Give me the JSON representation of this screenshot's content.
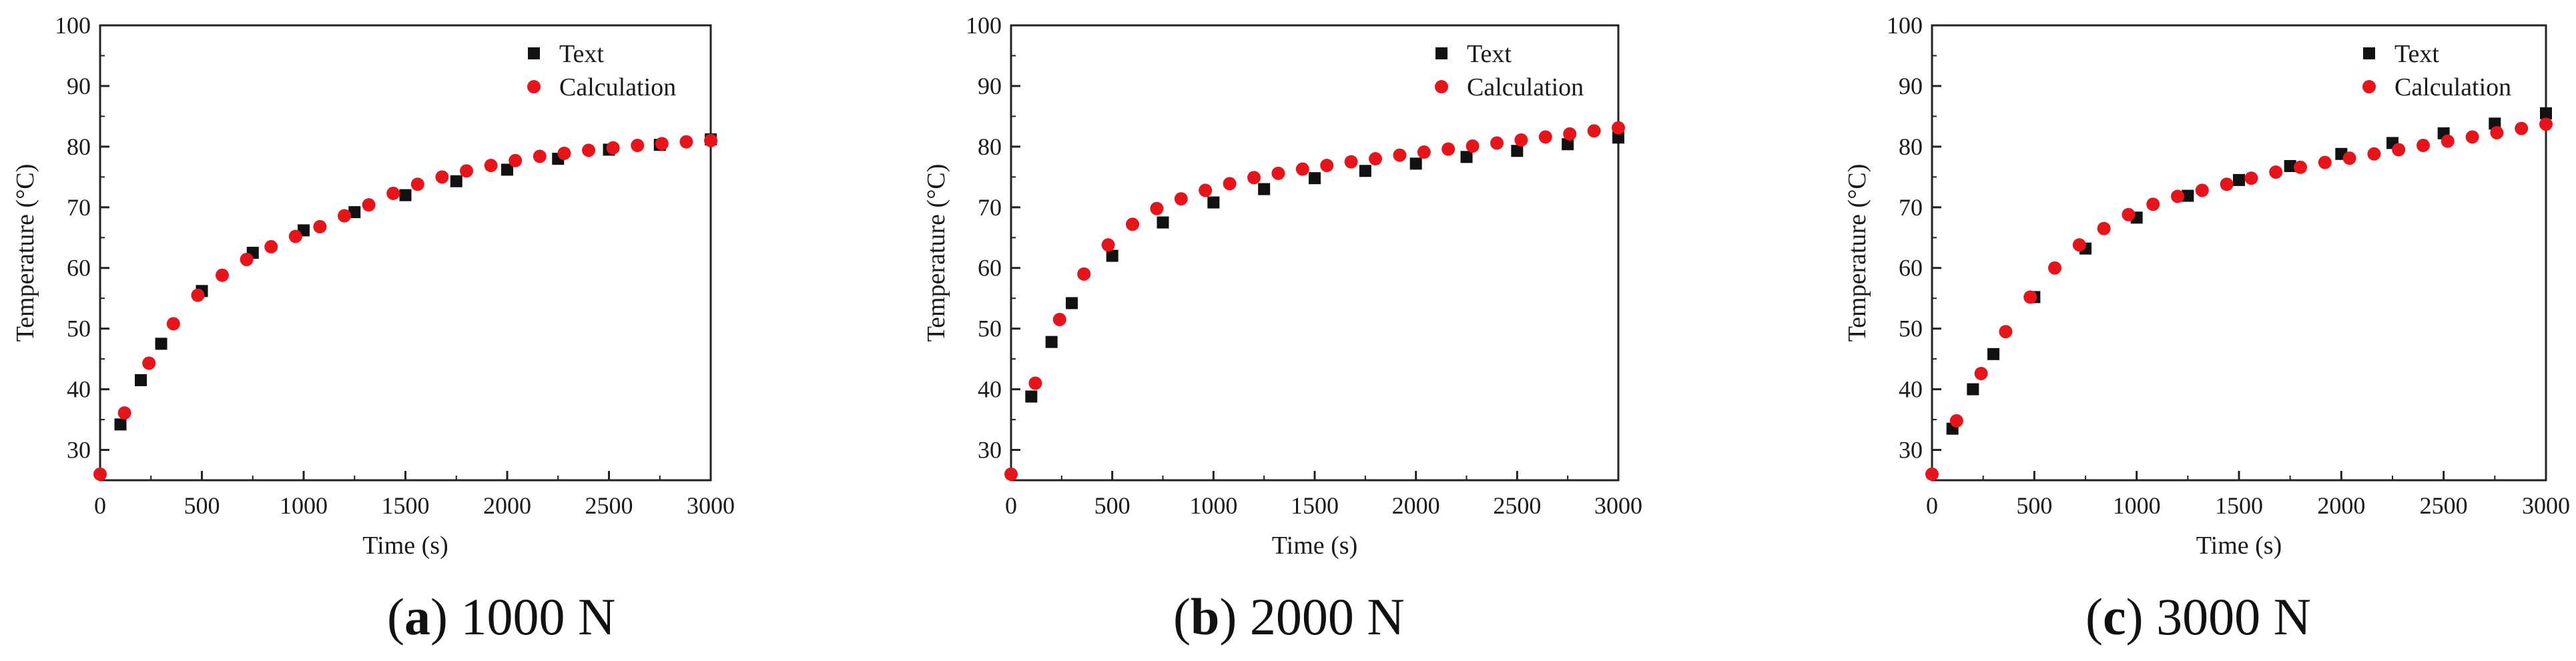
{
  "chart_data": [
    {
      "type": "scatter",
      "panel_label": "a",
      "caption": "1000 N",
      "xlabel": "Time (s)",
      "ylabel": "Temperature (°C)",
      "xlim": [
        0,
        3000
      ],
      "ylim": [
        25,
        100
      ],
      "xticks": [
        0,
        500,
        1000,
        1500,
        2000,
        2500,
        3000
      ],
      "yticks": [
        30,
        40,
        50,
        60,
        70,
        80,
        90,
        100
      ],
      "legend_position": "top-right",
      "series": [
        {
          "name": "Text",
          "marker": "square",
          "color": "#111111",
          "x": [
            100,
            200,
            300,
            500,
            750,
            1000,
            1250,
            1500,
            1750,
            2000,
            2250,
            2500,
            2750,
            3000
          ],
          "y": [
            34.2,
            41.5,
            47.5,
            56.2,
            62.5,
            66.2,
            69.2,
            72.0,
            74.3,
            76.2,
            78.0,
            79.5,
            80.3,
            81.2
          ]
        },
        {
          "name": "Calculation",
          "marker": "circle",
          "color": "#e8141b",
          "x": [
            0,
            120,
            240,
            360,
            480,
            600,
            720,
            840,
            960,
            1080,
            1200,
            1320,
            1440,
            1560,
            1680,
            1800,
            1920,
            2040,
            2160,
            2280,
            2400,
            2520,
            2640,
            2760,
            2880,
            3000
          ],
          "y": [
            26.0,
            36.1,
            44.3,
            50.8,
            55.5,
            58.8,
            61.4,
            63.5,
            65.2,
            66.8,
            68.6,
            70.4,
            72.3,
            73.8,
            75.0,
            76.0,
            76.9,
            77.7,
            78.4,
            78.9,
            79.4,
            79.8,
            80.2,
            80.5,
            80.8,
            81.0
          ]
        }
      ]
    },
    {
      "type": "scatter",
      "panel_label": "b",
      "caption": "2000 N",
      "xlabel": "Time (s)",
      "ylabel": "Temperature (°C)",
      "xlim": [
        0,
        3000
      ],
      "ylim": [
        25,
        100
      ],
      "xticks": [
        0,
        500,
        1000,
        1500,
        2000,
        2500,
        3000
      ],
      "yticks": [
        30,
        40,
        50,
        60,
        70,
        80,
        90,
        100
      ],
      "legend_position": "top-right",
      "series": [
        {
          "name": "Text",
          "marker": "square",
          "color": "#111111",
          "x": [
            100,
            200,
            300,
            500,
            750,
            1000,
            1250,
            1500,
            1750,
            2000,
            2250,
            2500,
            2750,
            3000
          ],
          "y": [
            38.8,
            47.8,
            54.2,
            62.0,
            67.5,
            70.8,
            73.0,
            74.8,
            76.0,
            77.2,
            78.3,
            79.3,
            80.4,
            81.5
          ]
        },
        {
          "name": "Calculation",
          "marker": "circle",
          "color": "#e8141b",
          "x": [
            0,
            120,
            240,
            360,
            480,
            600,
            720,
            840,
            960,
            1080,
            1200,
            1320,
            1440,
            1560,
            1680,
            1800,
            1920,
            2040,
            2160,
            2280,
            2400,
            2520,
            2640,
            2760,
            2880,
            3000
          ],
          "y": [
            26.0,
            41.0,
            51.5,
            59.0,
            63.8,
            67.2,
            69.8,
            71.4,
            72.8,
            73.9,
            74.9,
            75.6,
            76.3,
            76.9,
            77.5,
            78.0,
            78.6,
            79.1,
            79.6,
            80.1,
            80.6,
            81.1,
            81.6,
            82.1,
            82.6,
            83.1
          ]
        }
      ]
    },
    {
      "type": "scatter",
      "panel_label": "c",
      "caption": "3000 N",
      "xlabel": "Time (s)",
      "ylabel": "Temperature (°C)",
      "xlim": [
        0,
        3000
      ],
      "ylim": [
        25,
        100
      ],
      "xticks": [
        0,
        500,
        1000,
        1500,
        2000,
        2500,
        3000
      ],
      "yticks": [
        30,
        40,
        50,
        60,
        70,
        80,
        90,
        100
      ],
      "legend_position": "top-right",
      "series": [
        {
          "name": "Text",
          "marker": "square",
          "color": "#111111",
          "x": [
            100,
            200,
            300,
            500,
            750,
            1000,
            1250,
            1500,
            1750,
            2000,
            2250,
            2500,
            2750,
            3000
          ],
          "y": [
            33.5,
            40.0,
            45.8,
            55.2,
            63.2,
            68.3,
            71.9,
            74.5,
            76.8,
            78.8,
            80.6,
            82.2,
            83.8,
            85.5
          ]
        },
        {
          "name": "Calculation",
          "marker": "circle",
          "color": "#e8141b",
          "x": [
            0,
            120,
            240,
            360,
            480,
            600,
            720,
            840,
            960,
            1080,
            1200,
            1320,
            1440,
            1560,
            1680,
            1800,
            1920,
            2040,
            2160,
            2280,
            2400,
            2520,
            2640,
            2760,
            2880,
            3000
          ],
          "y": [
            26.0,
            34.8,
            42.6,
            49.5,
            55.2,
            60.0,
            63.8,
            66.5,
            68.8,
            70.5,
            71.8,
            72.8,
            73.8,
            74.8,
            75.8,
            76.6,
            77.4,
            78.1,
            78.8,
            79.5,
            80.2,
            80.9,
            81.6,
            82.3,
            83.0,
            83.7
          ]
        }
      ]
    }
  ]
}
